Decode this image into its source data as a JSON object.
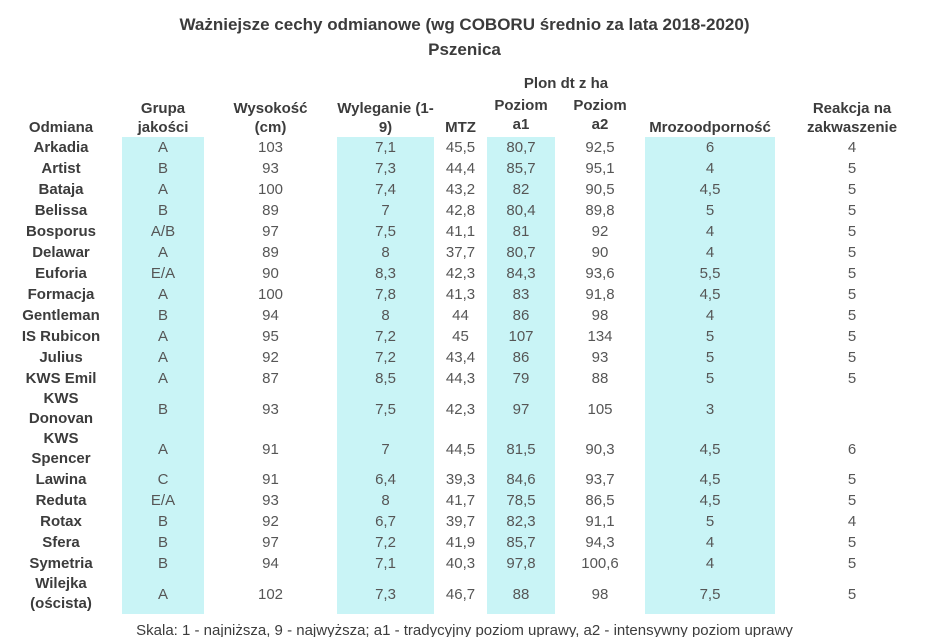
{
  "colors": {
    "highlight_band": "#c9f4f6",
    "heading_text": "#3b3b3b",
    "value_text": "#565656",
    "background": "#ffffff"
  },
  "chart_data": {
    "type": "table",
    "title": "Ważniejsze cechy odmianowe (wg COBORU średnio za lata 2018-2020)",
    "subtitle": "Pszenica",
    "column_groups": [
      {
        "label": "Plon dt z ha",
        "spans": [
          "Poziom a1",
          "Poziom a2"
        ]
      }
    ],
    "columns": [
      "Odmiana",
      "Grupa jakości",
      "Wysokość (cm)",
      "Wyleganie (1-9)",
      "MTZ",
      "Poziom a1",
      "Poziom a2",
      "Mrozoodporność",
      "Reakcja na zakwaszenie"
    ],
    "column_keys": [
      "variety",
      "quality-group",
      "height-cm",
      "lodging",
      "mtz",
      "yield-level-a1",
      "yield-level-a2",
      "frost-resistance",
      "acidity-reaction"
    ],
    "highlighted_column_indexes": [
      1,
      3,
      5,
      7
    ],
    "rows": [
      [
        "Arkadia",
        "A",
        "103",
        "7,1",
        "45,5",
        "80,7",
        "92,5",
        "6",
        "4"
      ],
      [
        "Artist",
        "B",
        "93",
        "7,3",
        "44,4",
        "85,7",
        "95,1",
        "4",
        "5"
      ],
      [
        "Bataja",
        "A",
        "100",
        "7,4",
        "43,2",
        "82",
        "90,5",
        "4,5",
        "5"
      ],
      [
        "Belissa",
        "B",
        "89",
        "7",
        "42,8",
        "80,4",
        "89,8",
        "5",
        "5"
      ],
      [
        "Bosporus",
        "A/B",
        "97",
        "7,5",
        "41,1",
        "81",
        "92",
        "4",
        "5"
      ],
      [
        "Delawar",
        "A",
        "89",
        "8",
        "37,7",
        "80,7",
        "90",
        "4",
        "5"
      ],
      [
        "Euforia",
        "E/A",
        "90",
        "8,3",
        "42,3",
        "84,3",
        "93,6",
        "5,5",
        "5"
      ],
      [
        "Formacja",
        "A",
        "100",
        "7,8",
        "41,3",
        "83",
        "91,8",
        "4,5",
        "5"
      ],
      [
        "Gentleman",
        "B",
        "94",
        "8",
        "44",
        "86",
        "98",
        "4",
        "5"
      ],
      [
        "IS Rubicon",
        "A",
        "95",
        "7,2",
        "45",
        "107",
        "134",
        "5",
        "5"
      ],
      [
        "Julius",
        "A",
        "92",
        "7,2",
        "43,4",
        "86",
        "93",
        "5",
        "5"
      ],
      [
        "KWS Emil",
        "A",
        "87",
        "8,5",
        "44,3",
        "79",
        "88",
        "5",
        "5"
      ],
      [
        "KWS Donovan",
        "B",
        "93",
        "7,5",
        "42,3",
        "97",
        "105",
        "3",
        ""
      ],
      [
        "KWS Spencer",
        "A",
        "91",
        "7",
        "44,5",
        "81,5",
        "90,3",
        "4,5",
        "6"
      ],
      [
        "Lawina",
        "C",
        "91",
        "6,4",
        "39,3",
        "84,6",
        "93,7",
        "4,5",
        "5"
      ],
      [
        "Reduta",
        "E/A",
        "93",
        "8",
        "41,7",
        "78,5",
        "86,5",
        "4,5",
        "5"
      ],
      [
        "Rotax",
        "B",
        "92",
        "6,7",
        "39,7",
        "82,3",
        "91,1",
        "5",
        "4"
      ],
      [
        "Sfera",
        "B",
        "97",
        "7,2",
        "41,9",
        "85,7",
        "94,3",
        "4",
        "5"
      ],
      [
        "Symetria",
        "B",
        "94",
        "7,1",
        "40,3",
        "97,8",
        "100,6",
        "4",
        "5"
      ],
      [
        "Wilejka (oścista)",
        "A",
        "102",
        "7,3",
        "46,7",
        "88",
        "98",
        "7,5",
        "5"
      ]
    ],
    "footnote": "Skala: 1 - najniższa, 9 - najwyższa; a1 - tradycyjny poziom uprawy, a2 - intensywny poziom uprawy"
  }
}
